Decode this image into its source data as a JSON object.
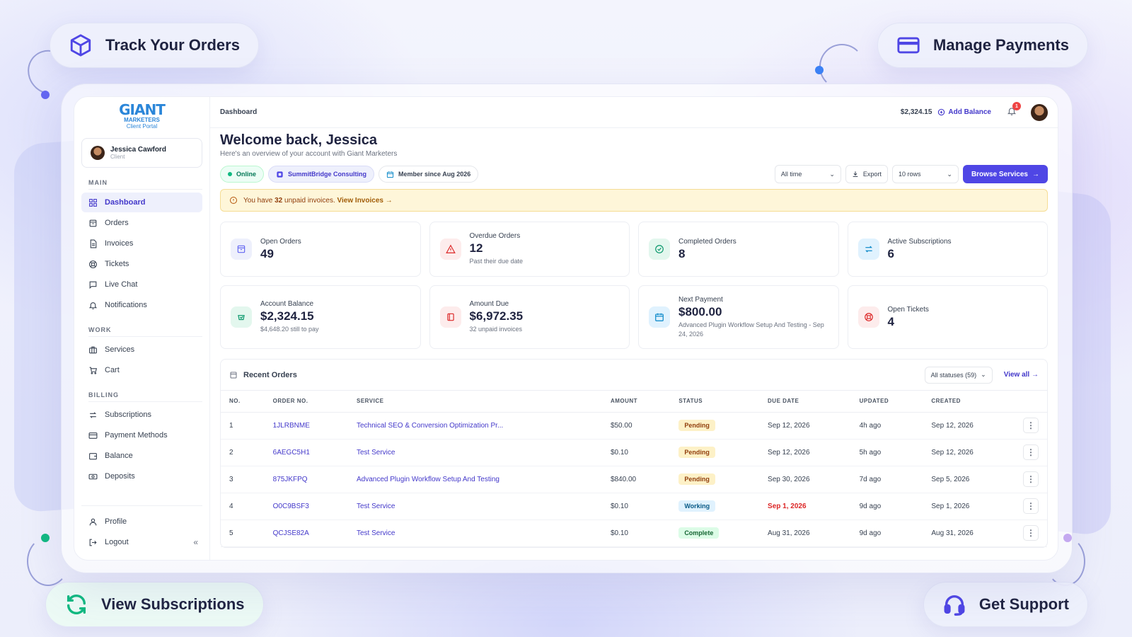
{
  "callouts": {
    "track": "Track Your Orders",
    "payments": "Manage Payments",
    "subscriptions": "View Subscriptions",
    "support": "Get Support"
  },
  "brand": {
    "logo_main": "GIANT",
    "logo_sub": "MARKETERS",
    "logo_portal": "Client Portal",
    "accent": "#4f46e5"
  },
  "user": {
    "name": "Jessica Cawford",
    "role": "Client"
  },
  "sidebar": {
    "main_label": "MAIN",
    "main": [
      {
        "label": "Dashboard",
        "icon": "grid-icon",
        "active": true
      },
      {
        "label": "Orders",
        "icon": "box-icon"
      },
      {
        "label": "Invoices",
        "icon": "document-icon"
      },
      {
        "label": "Tickets",
        "icon": "lifebuoy-icon"
      },
      {
        "label": "Live Chat",
        "icon": "chat-icon"
      },
      {
        "label": "Notifications",
        "icon": "bell-icon"
      }
    ],
    "work_label": "WORK",
    "work": [
      {
        "label": "Services",
        "icon": "briefcase-icon"
      },
      {
        "label": "Cart",
        "icon": "cart-icon"
      }
    ],
    "billing_label": "BILLING",
    "billing": [
      {
        "label": "Subscriptions",
        "icon": "refresh-icon"
      },
      {
        "label": "Payment Methods",
        "icon": "card-icon"
      },
      {
        "label": "Balance",
        "icon": "wallet-icon"
      },
      {
        "label": "Deposits",
        "icon": "cash-icon"
      }
    ],
    "bottom": [
      {
        "label": "Profile",
        "icon": "user-icon"
      },
      {
        "label": "Logout",
        "icon": "logout-icon"
      }
    ],
    "collapse": "«"
  },
  "topbar": {
    "breadcrumb": "Dashboard",
    "balance": "$2,324.15",
    "add_balance": "Add Balance",
    "notification_count": "1"
  },
  "welcome": {
    "title": "Welcome back, Jessica",
    "subtitle": "Here's an overview of your account with Giant Marketers"
  },
  "chips": {
    "online": "Online",
    "company": "SummitBridge Consulting",
    "member": "Member since Aug 2026"
  },
  "controls": {
    "range": "All time",
    "export": "Export",
    "rows": "10 rows",
    "browse": "Browse Services"
  },
  "alert": {
    "prefix": "You have",
    "count": "32",
    "suffix": "unpaid invoices.",
    "link": "View Invoices →"
  },
  "stats_row1": [
    {
      "label": "Open Orders",
      "value": "49",
      "sub": "",
      "icon": "box-icon",
      "color": "#6366f1",
      "bg": "#eef0fc"
    },
    {
      "label": "Overdue Orders",
      "value": "12",
      "sub": "Past their due date",
      "icon": "warning-icon",
      "color": "#dc2626",
      "bg": "#fdecec"
    },
    {
      "label": "Completed Orders",
      "value": "8",
      "sub": "",
      "icon": "check-icon",
      "color": "#059669",
      "bg": "#e3f7ee"
    },
    {
      "label": "Active Subscriptions",
      "value": "6",
      "sub": "",
      "icon": "refresh-icon",
      "color": "#0284c7",
      "bg": "#e0f2fe"
    }
  ],
  "stats_row2": [
    {
      "label": "Account Balance",
      "value": "$2,324.15",
      "sub": "$4,648.20 still to pay",
      "icon": "wallet-icon",
      "color": "#059669",
      "bg": "#e3f7ee"
    },
    {
      "label": "Amount Due",
      "value": "$6,972.35",
      "sub": "32 unpaid invoices",
      "icon": "invoice-icon",
      "color": "#dc2626",
      "bg": "#fdecec"
    },
    {
      "label": "Next Payment",
      "value": "$800.00",
      "sub": "Advanced Plugin Workflow Setup And Testing - Sep 24, 2026",
      "icon": "calendar-icon",
      "color": "#0284c7",
      "bg": "#e0f2fe"
    },
    {
      "label": "Open Tickets",
      "value": "4",
      "sub": "",
      "icon": "lifebuoy-icon",
      "color": "#dc2626",
      "bg": "#fdecec"
    }
  ],
  "orders": {
    "title": "Recent Orders",
    "status_filter": "All statuses (59)",
    "view_all": "View all →",
    "columns": [
      "NO.",
      "ORDER NO.",
      "SERVICE",
      "AMOUNT",
      "STATUS",
      "DUE DATE",
      "UPDATED",
      "CREATED"
    ],
    "rows": [
      {
        "no": "1",
        "order": "1JLRBNME",
        "service": "Technical SEO & Conversion Optimization Pr...",
        "amount": "$50.00",
        "status": "Pending",
        "due": "Sep 12, 2026",
        "updated": "4h ago",
        "created": "Sep 12, 2026"
      },
      {
        "no": "2",
        "order": "6AEGC5H1",
        "service": "Test Service",
        "amount": "$0.10",
        "status": "Pending",
        "due": "Sep 12, 2026",
        "updated": "5h ago",
        "created": "Sep 12, 2026"
      },
      {
        "no": "3",
        "order": "875JKFPQ",
        "service": "Advanced Plugin Workflow Setup And Testing",
        "amount": "$840.00",
        "status": "Pending",
        "due": "Sep 30, 2026",
        "updated": "7d ago",
        "created": "Sep 5, 2026"
      },
      {
        "no": "4",
        "order": "O0C9BSF3",
        "service": "Test Service",
        "amount": "$0.10",
        "status": "Working",
        "due": "Sep 1, 2026",
        "due_overdue": true,
        "updated": "9d ago",
        "created": "Sep 1, 2026"
      },
      {
        "no": "5",
        "order": "QCJSE82A",
        "service": "Test Service",
        "amount": "$0.10",
        "status": "Complete",
        "due": "Aug 31, 2026",
        "updated": "9d ago",
        "created": "Aug 31, 2026"
      }
    ]
  }
}
